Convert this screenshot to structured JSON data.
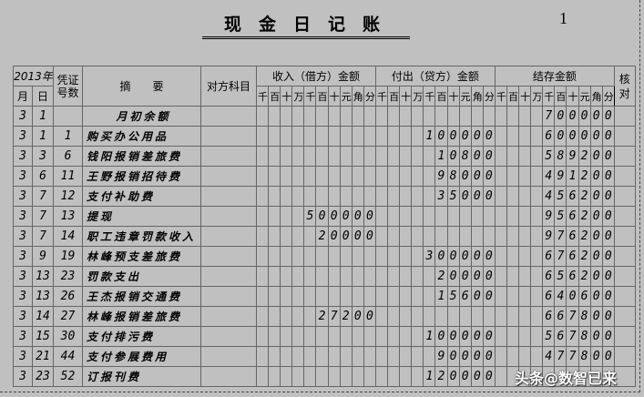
{
  "title": "现金日记账",
  "page_number": "1",
  "header": {
    "year": "2013年",
    "month": "月",
    "day": "日",
    "voucher": "凭证号数",
    "summary": "摘　　要",
    "contra_account": "对方科目",
    "income": "收入（借方）金额",
    "outflow": "付出（贷方）金额",
    "balance": "结存金额",
    "check": "核对",
    "digit_units": [
      "千",
      "百",
      "十",
      "万",
      "千",
      "百",
      "十",
      "元",
      "角",
      "分"
    ]
  },
  "rows": [
    {
      "month": "3",
      "day": "1",
      "voucher": "",
      "summary": "月初余额",
      "income": "",
      "outflow": "",
      "balance": "700000"
    },
    {
      "month": "3",
      "day": "1",
      "voucher": "1",
      "summary": "购买办公用品",
      "income": "",
      "outflow": "100000",
      "balance": "600000"
    },
    {
      "month": "3",
      "day": "3",
      "voucher": "6",
      "summary": "钱阳报销差旅费",
      "income": "",
      "outflow": "10800",
      "balance": "589200"
    },
    {
      "month": "3",
      "day": "6",
      "voucher": "11",
      "summary": "王野报销招待费",
      "income": "",
      "outflow": "98000",
      "balance": "491200"
    },
    {
      "month": "3",
      "day": "7",
      "voucher": "12",
      "summary": "支付补助费",
      "income": "",
      "outflow": "35000",
      "balance": "456200"
    },
    {
      "month": "3",
      "day": "7",
      "voucher": "13",
      "summary": "提现",
      "income": "500000",
      "outflow": "",
      "balance": "956200"
    },
    {
      "month": "3",
      "day": "7",
      "voucher": "14",
      "summary": "职工违章罚款收入",
      "income": "20000",
      "outflow": "",
      "balance": "976200"
    },
    {
      "month": "3",
      "day": "9",
      "voucher": "19",
      "summary": "林峰预支差旅费",
      "income": "",
      "outflow": "300000",
      "balance": "676200"
    },
    {
      "month": "3",
      "day": "13",
      "voucher": "23",
      "summary": "罚款支出",
      "income": "",
      "outflow": "20000",
      "balance": "656200"
    },
    {
      "month": "3",
      "day": "13",
      "voucher": "26",
      "summary": "王杰报销交通费",
      "income": "",
      "outflow": "15600",
      "balance": "640600"
    },
    {
      "month": "3",
      "day": "14",
      "voucher": "27",
      "summary": "林峰报销差旅费",
      "income": "27200",
      "outflow": "",
      "balance": "667800"
    },
    {
      "month": "3",
      "day": "15",
      "voucher": "30",
      "summary": "支付排污费",
      "income": "",
      "outflow": "100000",
      "balance": "567800"
    },
    {
      "month": "3",
      "day": "21",
      "voucher": "44",
      "summary": "支付参展费用",
      "income": "",
      "outflow": "90000",
      "balance": "477800"
    },
    {
      "month": "3",
      "day": "23",
      "voucher": "52",
      "summary": "订报刊费",
      "income": "",
      "outflow": "120000",
      "balance": ""
    }
  ],
  "watermark": "头条@数智已来"
}
